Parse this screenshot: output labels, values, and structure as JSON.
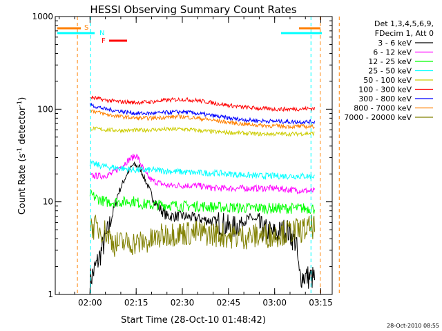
{
  "chart_data": {
    "type": "line",
    "title": "HESSI Observing Summary Count Rates",
    "xlabel": "Start Time (28-Oct-10 01:48:42)",
    "ylabel": {
      "main": "Count Rate (s",
      "sup1": "-1",
      "mid": " detector",
      "sup2": "-1",
      "end": ")"
    },
    "y_scale": "log",
    "ylim": [
      1,
      1000
    ],
    "xlim_minutes": [
      108.7,
      198.7
    ],
    "y_ticks": [
      {
        "value": 1,
        "label": "1"
      },
      {
        "value": 10,
        "label": "10"
      },
      {
        "value": 100,
        "label": "100"
      },
      {
        "value": 1000,
        "label": "1000"
      }
    ],
    "x_ticks": [
      {
        "minutes": 120,
        "label": "02:00"
      },
      {
        "minutes": 135,
        "label": "02:15"
      },
      {
        "minutes": 150,
        "label": "02:30"
      },
      {
        "minutes": 165,
        "label": "02:45"
      },
      {
        "minutes": 180,
        "label": "03:00"
      },
      {
        "minutes": 195,
        "label": "03:15"
      }
    ],
    "legend": {
      "placement": "right",
      "header": [
        "Det 1,3,4,5,6,9,",
        "FDecim 1, Att 0"
      ]
    },
    "series": [
      {
        "name": "3 - 6 keV",
        "color": "#000000",
        "points": [
          [
            120,
            1.4
          ],
          [
            123,
            2.5
          ],
          [
            126,
            5
          ],
          [
            129,
            12
          ],
          [
            132,
            20
          ],
          [
            134,
            25
          ],
          [
            136,
            24
          ],
          [
            138,
            17
          ],
          [
            140,
            12
          ],
          [
            142,
            9
          ],
          [
            145,
            7
          ],
          [
            150,
            7
          ],
          [
            155,
            6.6
          ],
          [
            160,
            6.2
          ],
          [
            163,
            5.8
          ],
          [
            166,
            5
          ],
          [
            170,
            6.3
          ],
          [
            173,
            6.7
          ],
          [
            176,
            5
          ],
          [
            180,
            4.5
          ],
          [
            184,
            5
          ],
          [
            187,
            3.6
          ],
          [
            188,
            1.6
          ],
          [
            193,
            1.5
          ]
        ]
      },
      {
        "name": "6 - 12 keV",
        "color": "#ff00ff",
        "points": [
          [
            120,
            19
          ],
          [
            124,
            19
          ],
          [
            127,
            20
          ],
          [
            130,
            24
          ],
          [
            133,
            29
          ],
          [
            135,
            32
          ],
          [
            136,
            28
          ],
          [
            138,
            20
          ],
          [
            140,
            17
          ],
          [
            145,
            15
          ],
          [
            150,
            15
          ],
          [
            155,
            15
          ],
          [
            160,
            14
          ],
          [
            165,
            14
          ],
          [
            170,
            14
          ],
          [
            175,
            14
          ],
          [
            180,
            14
          ],
          [
            185,
            13.5
          ],
          [
            193,
            13
          ]
        ]
      },
      {
        "name": "12 - 25 keV",
        "color": "#00ff00",
        "points": [
          [
            120,
            12
          ],
          [
            122,
            11
          ],
          [
            125,
            10
          ],
          [
            128,
            10
          ],
          [
            131,
            10
          ],
          [
            134,
            10.2
          ],
          [
            137,
            9.5
          ],
          [
            140,
            9.2
          ],
          [
            145,
            9.3
          ],
          [
            150,
            9
          ],
          [
            155,
            9
          ],
          [
            160,
            8.8
          ],
          [
            165,
            8.7
          ],
          [
            170,
            8.6
          ],
          [
            175,
            8.6
          ],
          [
            180,
            8.5
          ],
          [
            185,
            8.5
          ],
          [
            193,
            8.5
          ]
        ]
      },
      {
        "name": "25 - 50 keV",
        "color": "#00ffff",
        "points": [
          [
            120,
            26
          ],
          [
            125,
            24
          ],
          [
            130,
            23
          ],
          [
            135,
            22
          ],
          [
            140,
            22
          ],
          [
            145,
            21.5
          ],
          [
            150,
            21
          ],
          [
            155,
            20.5
          ],
          [
            160,
            20.5
          ],
          [
            165,
            20
          ],
          [
            170,
            19.5
          ],
          [
            175,
            19
          ],
          [
            180,
            19
          ],
          [
            185,
            19
          ],
          [
            193,
            19
          ]
        ]
      },
      {
        "name": "50 - 100 keV",
        "color": "#cccc00",
        "points": [
          [
            120,
            62
          ],
          [
            125,
            60
          ],
          [
            130,
            59
          ],
          [
            135,
            59
          ],
          [
            140,
            60
          ],
          [
            145,
            60.5
          ],
          [
            150,
            61
          ],
          [
            155,
            59
          ],
          [
            160,
            57
          ],
          [
            165,
            56
          ],
          [
            170,
            55
          ],
          [
            175,
            54
          ],
          [
            180,
            54
          ],
          [
            185,
            54
          ],
          [
            193,
            55
          ]
        ]
      },
      {
        "name": "100 - 300 keV",
        "color": "#ff0000",
        "points": [
          [
            120,
            135
          ],
          [
            125,
            125
          ],
          [
            130,
            120
          ],
          [
            135,
            118
          ],
          [
            140,
            120
          ],
          [
            145,
            125
          ],
          [
            150,
            128
          ],
          [
            155,
            124
          ],
          [
            160,
            117
          ],
          [
            165,
            110
          ],
          [
            170,
            105
          ],
          [
            175,
            102
          ],
          [
            180,
            100
          ],
          [
            185,
            100
          ],
          [
            193,
            102
          ]
        ]
      },
      {
        "name": "300 - 800 keV",
        "color": "#0000ff",
        "points": [
          [
            120,
            112
          ],
          [
            125,
            100
          ],
          [
            130,
            95
          ],
          [
            135,
            90
          ],
          [
            140,
            90
          ],
          [
            145,
            92
          ],
          [
            150,
            94
          ],
          [
            155,
            90
          ],
          [
            160,
            85
          ],
          [
            165,
            80
          ],
          [
            170,
            77
          ],
          [
            175,
            75
          ],
          [
            180,
            74
          ],
          [
            185,
            73
          ],
          [
            193,
            73
          ]
        ]
      },
      {
        "name": "800 - 7000 keV",
        "color": "#ff8000",
        "points": [
          [
            120,
            98
          ],
          [
            125,
            88
          ],
          [
            130,
            83
          ],
          [
            135,
            80
          ],
          [
            140,
            80
          ],
          [
            145,
            82
          ],
          [
            150,
            83
          ],
          [
            155,
            80
          ],
          [
            160,
            76
          ],
          [
            165,
            72
          ],
          [
            170,
            69
          ],
          [
            175,
            67
          ],
          [
            180,
            66
          ],
          [
            185,
            65
          ],
          [
            193,
            65
          ]
        ]
      },
      {
        "name": "7000 - 20000 keV",
        "color": "#808000",
        "points": [
          [
            120,
            5.5
          ],
          [
            125,
            4.8
          ],
          [
            128,
            3.5
          ],
          [
            132,
            3.6
          ],
          [
            136,
            3.6
          ],
          [
            140,
            3.8
          ],
          [
            145,
            4.5
          ],
          [
            150,
            4.6
          ],
          [
            155,
            4.6
          ],
          [
            160,
            4.5
          ],
          [
            165,
            4.3
          ],
          [
            170,
            4.2
          ],
          [
            175,
            4.3
          ],
          [
            180,
            4.4
          ],
          [
            185,
            4.8
          ],
          [
            190,
            5
          ],
          [
            193,
            5.5
          ]
        ]
      }
    ],
    "annotations": {
      "S": {
        "label": "S",
        "color": "#ff8000",
        "vlines_minutes": [
          115.9,
          194.8,
          201.0
        ]
      },
      "N": {
        "label": "N",
        "color": "#00ffff",
        "vlines_minutes": [
          120.2,
          191.8
        ]
      },
      "F": {
        "label": "F",
        "color": "#ff0000"
      }
    },
    "grid": false
  },
  "timestamp": "28-Oct-2010 08:55"
}
